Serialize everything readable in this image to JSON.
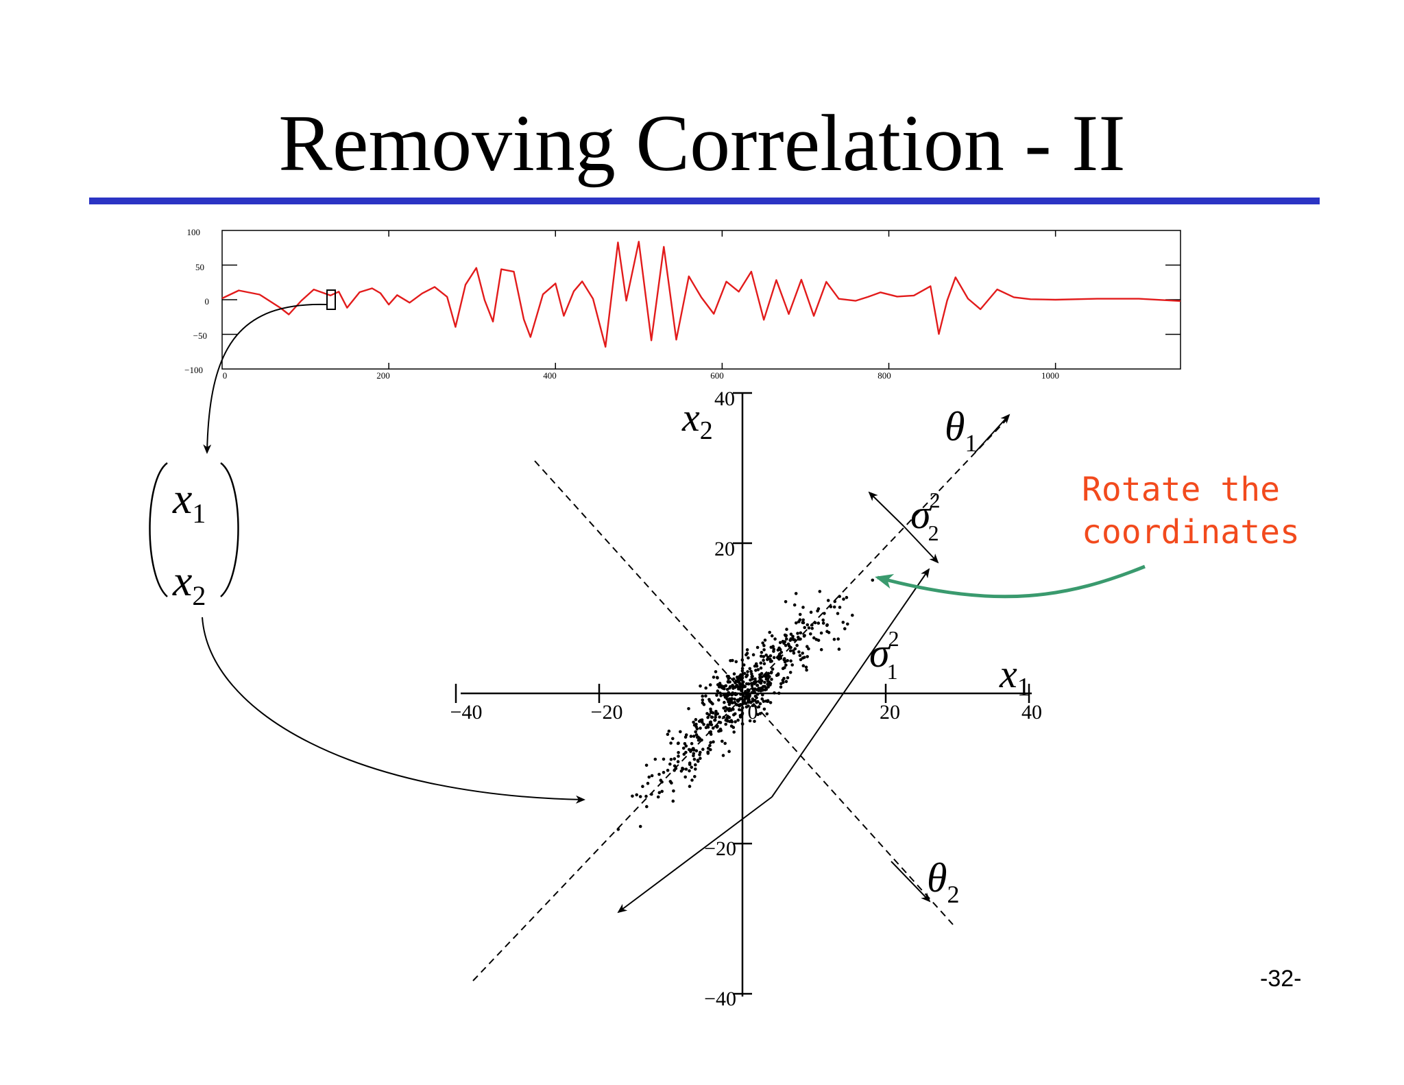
{
  "slide": {
    "title": "Removing Correlation - II",
    "page_number": "-32-",
    "annotation_lines": [
      "Rotate the",
      "coordinates"
    ],
    "colors": {
      "title_rule": "#2b34c4",
      "signal": "#e21b1b",
      "annotation_text": "#f24a1d",
      "annotation_arrow": "#3a9a6e"
    }
  },
  "vector": {
    "top_var": "x",
    "top_sub": "1",
    "bottom_var": "x",
    "bottom_sub": "2"
  },
  "chart_data": [
    {
      "type": "line",
      "title": "",
      "xlabel": "",
      "ylabel": "",
      "xlim": [
        0,
        1150
      ],
      "ylim": [
        -100,
        100
      ],
      "x_ticks": [
        "0",
        "200",
        "400",
        "600",
        "800",
        "1000"
      ],
      "y_ticks": [
        "100",
        "50",
        "0",
        "−50",
        "−100"
      ],
      "series": [
        {
          "x": [
            0,
            20,
            45,
            70,
            80,
            95,
            110,
            130,
            140,
            150,
            165,
            180,
            190,
            200,
            210,
            225,
            240,
            255,
            270,
            280,
            292,
            305,
            315,
            325,
            335,
            350,
            362,
            370,
            385,
            400,
            410,
            422,
            432,
            445,
            460,
            475,
            485,
            500,
            515,
            530,
            545,
            560,
            575,
            590,
            605,
            620,
            635,
            650,
            665,
            680,
            695,
            710,
            725,
            740,
            760,
            775,
            790,
            810,
            830,
            850,
            860,
            870,
            880,
            895,
            910,
            930,
            950,
            970,
            1000,
            1050,
            1100,
            1150
          ],
          "y": [
            2,
            12,
            6,
            -12,
            -20,
            0,
            15,
            5,
            10,
            -12,
            12,
            18,
            10,
            -8,
            5,
            -5,
            10,
            20,
            5,
            -40,
            20,
            45,
            0,
            -30,
            45,
            40,
            -30,
            -55,
            8,
            25,
            -22,
            12,
            25,
            0,
            -68,
            84,
            0,
            84,
            -60,
            75,
            -58,
            35,
            5,
            -20,
            25,
            10,
            40,
            -28,
            30,
            -20,
            28,
            -25,
            25,
            2,
            0,
            5,
            10,
            3,
            5,
            20,
            -48,
            0,
            32,
            0,
            -15,
            15,
            5,
            2,
            0,
            0,
            0,
            -2
          ]
        }
      ]
    },
    {
      "type": "scatter",
      "title": "",
      "xlabel": "x1",
      "ylabel": "x2",
      "xlim": [
        -40,
        40
      ],
      "ylim": [
        -40,
        40
      ],
      "x_ticks": [
        "−40",
        "−20",
        "0",
        "20",
        "40"
      ],
      "y_ticks": [
        "40",
        "20",
        "−20",
        "−40"
      ],
      "principal_axes": [
        {
          "label": "θ",
          "sub": "1",
          "variance_label": "σ",
          "variance_sub": "1",
          "variance_sup": "2"
        },
        {
          "label": "θ",
          "sub": "2",
          "variance_label": "σ",
          "variance_sub": "2",
          "variance_sup": "2"
        }
      ]
    }
  ]
}
